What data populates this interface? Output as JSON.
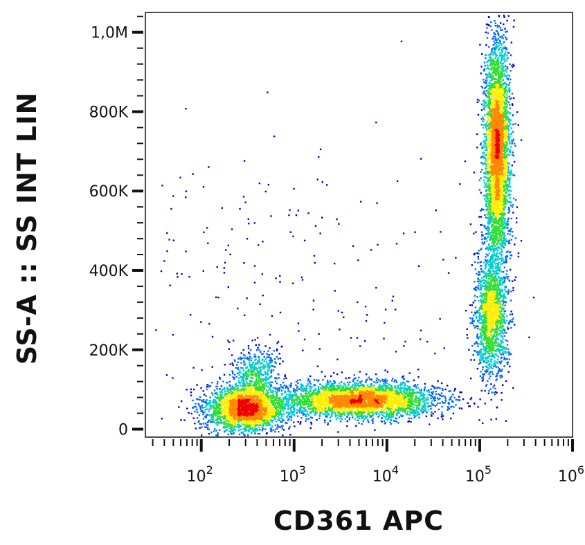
{
  "chart_data": {
    "type": "scatter",
    "title": "",
    "xlabel": "CD361 APC",
    "ylabel": "SS-A :: SS INT LIN",
    "x_scale": "log",
    "y_scale": "linear",
    "xlim": [
      25,
      1000000
    ],
    "ylim": [
      -20000,
      1050000
    ],
    "x_ticks": [
      {
        "value": 100,
        "base": "10",
        "exp": "2"
      },
      {
        "value": 1000,
        "base": "10",
        "exp": "3"
      },
      {
        "value": 10000,
        "base": "10",
        "exp": "4"
      },
      {
        "value": 100000,
        "base": "10",
        "exp": "5"
      },
      {
        "value": 1000000,
        "base": "10",
        "exp": "6"
      }
    ],
    "y_ticks": [
      {
        "value": 0,
        "label": "0"
      },
      {
        "value": 200000,
        "label": "200K"
      },
      {
        "value": 400000,
        "label": "400K"
      },
      {
        "value": 600000,
        "label": "600K"
      },
      {
        "value": 800000,
        "label": "800K"
      },
      {
        "value": 1000000,
        "label": "1,0M"
      }
    ],
    "grid": false,
    "legend": "none",
    "colormap": [
      "#0000cc",
      "#0066ff",
      "#00cccc",
      "#33dd33",
      "#ffee00",
      "#ff8800",
      "#ee0000"
    ],
    "populations": [
      {
        "x_center": 300,
        "y_center": 55000,
        "x_log_spread": 0.22,
        "y_spread": 30000,
        "count": 2600
      },
      {
        "x_center": 380,
        "y_center": 150000,
        "x_log_spread": 0.12,
        "y_spread": 30000,
        "count": 400
      },
      {
        "x_center": 5000,
        "y_center": 75000,
        "x_log_spread": 0.42,
        "y_spread": 22000,
        "count": 3400
      },
      {
        "x_center": 150000,
        "y_center": 700000,
        "x_log_spread": 0.07,
        "y_spread": 145000,
        "count": 3800
      },
      {
        "x_center": 130000,
        "y_center": 280000,
        "x_log_spread": 0.09,
        "y_spread": 80000,
        "count": 1500
      },
      {
        "x_center": 500,
        "y_center": 350000,
        "x_log_spread": 1.3,
        "y_spread": 200000,
        "count": 260
      }
    ]
  }
}
